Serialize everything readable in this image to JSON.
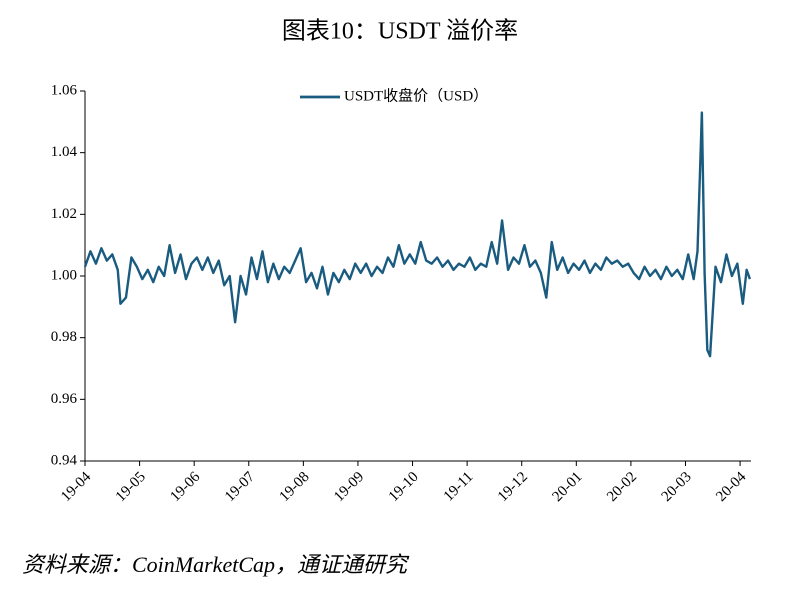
{
  "chart_data": {
    "type": "line",
    "title": "图表10：USDT 溢价率",
    "source": "资料来源：CoinMarketCap，通证通研究",
    "legend": "top-center",
    "x": [
      0,
      0.1,
      0.2,
      0.3,
      0.4,
      0.5,
      0.6,
      0.65,
      0.75,
      0.85,
      0.95,
      1.05,
      1.15,
      1.25,
      1.35,
      1.45,
      1.55,
      1.65,
      1.75,
      1.85,
      1.95,
      2.05,
      2.15,
      2.25,
      2.35,
      2.45,
      2.55,
      2.65,
      2.75,
      2.85,
      2.95,
      3.05,
      3.15,
      3.25,
      3.35,
      3.45,
      3.55,
      3.65,
      3.75,
      3.85,
      3.95,
      4.05,
      4.15,
      4.25,
      4.35,
      4.45,
      4.55,
      4.65,
      4.75,
      4.85,
      4.95,
      5.05,
      5.15,
      5.25,
      5.35,
      5.45,
      5.55,
      5.65,
      5.75,
      5.85,
      5.95,
      6.05,
      6.15,
      6.25,
      6.35,
      6.45,
      6.55,
      6.65,
      6.75,
      6.85,
      6.95,
      7.05,
      7.15,
      7.25,
      7.35,
      7.45,
      7.55,
      7.64,
      7.75,
      7.85,
      7.95,
      8.05,
      8.15,
      8.25,
      8.35,
      8.45,
      8.55,
      8.65,
      8.75,
      8.85,
      8.95,
      9.05,
      9.15,
      9.25,
      9.35,
      9.45,
      9.55,
      9.65,
      9.75,
      9.85,
      9.95,
      10.05,
      10.15,
      10.25,
      10.35,
      10.45,
      10.55,
      10.65,
      10.75,
      10.85,
      10.95,
      11.05,
      11.15,
      11.22,
      11.3,
      11.35,
      11.4,
      11.45,
      11.55,
      11.65,
      11.75,
      11.85,
      11.95,
      12.05,
      12.12,
      12.18
    ],
    "series": [
      {
        "name": "USDT收盘价（USD）",
        "color": "#1a5b80",
        "values": [
          1.003,
          1.008,
          1.004,
          1.009,
          1.005,
          1.007,
          1.002,
          0.991,
          0.993,
          1.006,
          1.003,
          0.999,
          1.002,
          0.998,
          1.003,
          1.0,
          1.01,
          1.001,
          1.007,
          0.999,
          1.004,
          1.006,
          1.002,
          1.006,
          1.001,
          1.005,
          0.997,
          1.0,
          0.985,
          1.0,
          0.994,
          1.006,
          0.999,
          1.008,
          0.998,
          1.004,
          0.999,
          1.003,
          1.001,
          1.005,
          1.009,
          0.998,
          1.001,
          0.996,
          1.003,
          0.994,
          1.001,
          0.998,
          1.002,
          0.999,
          1.004,
          1.001,
          1.004,
          1.0,
          1.003,
          1.001,
          1.006,
          1.003,
          1.01,
          1.004,
          1.007,
          1.004,
          1.011,
          1.005,
          1.004,
          1.006,
          1.003,
          1.005,
          1.002,
          1.004,
          1.003,
          1.006,
          1.002,
          1.004,
          1.003,
          1.011,
          1.004,
          1.018,
          1.002,
          1.006,
          1.004,
          1.01,
          1.003,
          1.005,
          1.001,
          0.993,
          1.011,
          1.002,
          1.006,
          1.001,
          1.004,
          1.002,
          1.005,
          1.001,
          1.004,
          1.002,
          1.006,
          1.004,
          1.005,
          1.003,
          1.004,
          1.001,
          0.999,
          1.003,
          1.0,
          1.002,
          0.999,
          1.003,
          1.0,
          1.002,
          0.999,
          1.007,
          0.999,
          1.008,
          1.053,
          1.001,
          0.976,
          0.974,
          1.003,
          0.998,
          1.007,
          1.0,
          1.004,
          0.991,
          1.002,
          0.999
        ]
      }
    ],
    "xlim": [
      0,
      12.2
    ],
    "xticks": [
      {
        "value": 0,
        "label": "19-04"
      },
      {
        "value": 1,
        "label": "19-05"
      },
      {
        "value": 2,
        "label": "19-06"
      },
      {
        "value": 3,
        "label": "19-07"
      },
      {
        "value": 4,
        "label": "19-08"
      },
      {
        "value": 5,
        "label": "19-09"
      },
      {
        "value": 6,
        "label": "19-10"
      },
      {
        "value": 7,
        "label": "19-11"
      },
      {
        "value": 8,
        "label": "19-12"
      },
      {
        "value": 9,
        "label": "20-01"
      },
      {
        "value": 10,
        "label": "20-02"
      },
      {
        "value": 11,
        "label": "20-03"
      },
      {
        "value": 12,
        "label": "20-04"
      }
    ],
    "ylim": [
      0.94,
      1.06
    ],
    "yticks": [
      0.94,
      0.96,
      0.98,
      {
        "value": 1,
        "label": "1.00"
      },
      1.02,
      1.04,
      1.06
    ]
  }
}
